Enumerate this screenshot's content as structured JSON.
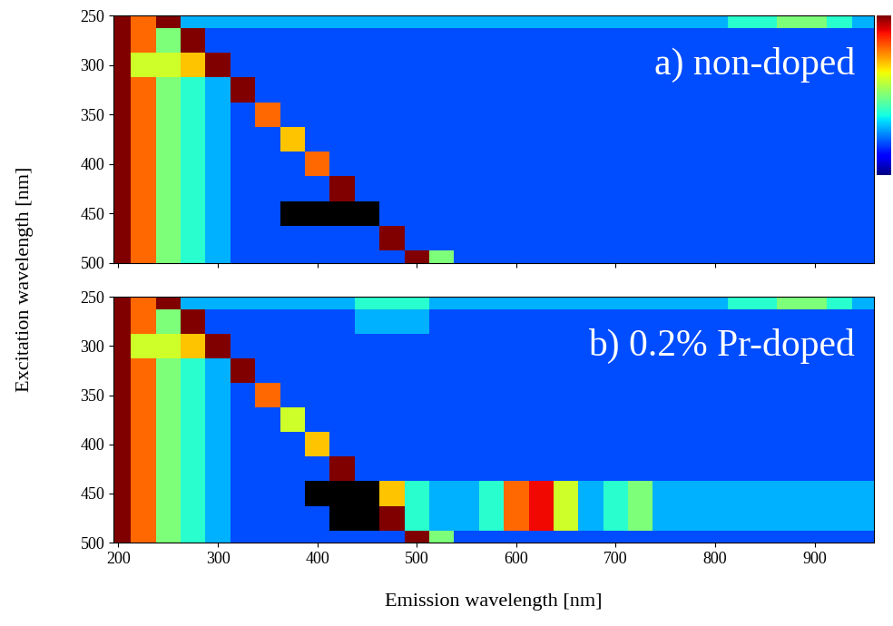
{
  "chart_data": [
    {
      "type": "heatmap",
      "title": "a) non-doped",
      "tick_labels": "y",
      "x": [
        200,
        225,
        250,
        275,
        300,
        325,
        350,
        375,
        400,
        425,
        450,
        475,
        500,
        525,
        550,
        575,
        600,
        625,
        650,
        675,
        700,
        725,
        750,
        775,
        800,
        825,
        850,
        875,
        900,
        925,
        950
      ],
      "y": [
        250,
        275,
        300,
        325,
        350,
        375,
        400,
        425,
        450,
        475,
        500
      ],
      "xlim": [
        195,
        960
      ],
      "xticks": [
        200,
        300,
        400,
        500,
        600,
        700,
        800,
        900
      ],
      "ylim": [
        500,
        250
      ],
      "yticks": [
        250,
        300,
        350,
        400,
        450,
        500
      ],
      "color_range": [
        0,
        10
      ],
      "cells": [
        [
          10,
          8,
          10,
          3,
          3,
          3,
          3,
          3,
          3,
          3,
          3,
          3,
          3,
          3,
          3,
          3,
          3,
          3,
          3,
          3,
          3,
          3,
          3,
          3,
          3,
          4,
          4,
          5,
          5,
          4,
          3
        ],
        [
          10,
          8,
          5,
          10,
          2,
          2,
          2,
          2,
          2,
          2,
          2,
          2,
          2,
          2,
          2,
          2,
          2,
          2,
          2,
          2,
          2,
          2,
          2,
          2,
          2,
          2,
          2,
          2,
          2,
          2,
          2
        ],
        [
          10,
          6,
          6,
          7,
          10,
          2,
          2,
          2,
          2,
          2,
          2,
          2,
          2,
          2,
          2,
          2,
          2,
          2,
          2,
          2,
          2,
          2,
          2,
          2,
          2,
          2,
          2,
          2,
          2,
          2,
          2
        ],
        [
          10,
          8,
          5,
          4,
          3,
          10,
          2,
          2,
          2,
          2,
          2,
          2,
          2,
          2,
          2,
          2,
          2,
          2,
          2,
          2,
          2,
          2,
          2,
          2,
          2,
          2,
          2,
          2,
          2,
          2,
          2
        ],
        [
          10,
          8,
          5,
          4,
          3,
          2,
          8,
          2,
          2,
          2,
          2,
          2,
          2,
          2,
          2,
          2,
          2,
          2,
          2,
          2,
          2,
          2,
          2,
          2,
          2,
          2,
          2,
          2,
          2,
          2,
          2
        ],
        [
          10,
          8,
          5,
          4,
          3,
          2,
          2,
          7,
          2,
          2,
          2,
          2,
          2,
          2,
          2,
          2,
          2,
          2,
          2,
          2,
          2,
          2,
          2,
          2,
          2,
          2,
          2,
          2,
          2,
          2,
          2
        ],
        [
          10,
          8,
          5,
          4,
          3,
          2,
          2,
          2,
          8,
          2,
          2,
          2,
          2,
          2,
          2,
          2,
          2,
          2,
          2,
          2,
          2,
          2,
          2,
          2,
          2,
          2,
          2,
          2,
          2,
          2,
          2
        ],
        [
          10,
          8,
          5,
          4,
          3,
          2,
          2,
          2,
          2,
          10,
          2,
          2,
          2,
          2,
          2,
          2,
          2,
          2,
          2,
          2,
          2,
          2,
          2,
          2,
          2,
          2,
          2,
          2,
          2,
          2,
          2
        ],
        [
          10,
          8,
          5,
          4,
          3,
          2,
          2,
          null,
          null,
          null,
          null,
          2,
          2,
          2,
          2,
          2,
          2,
          2,
          2,
          2,
          2,
          2,
          2,
          2,
          2,
          2,
          2,
          2,
          2,
          2,
          2
        ],
        [
          10,
          8,
          5,
          4,
          3,
          2,
          2,
          2,
          2,
          2,
          2,
          10,
          2,
          2,
          2,
          2,
          2,
          2,
          2,
          2,
          2,
          2,
          2,
          2,
          2,
          2,
          2,
          2,
          2,
          2,
          2
        ],
        [
          10,
          8,
          5,
          4,
          3,
          2,
          2,
          2,
          2,
          2,
          2,
          2,
          10,
          5,
          2,
          2,
          2,
          2,
          2,
          2,
          2,
          2,
          2,
          2,
          2,
          2,
          2,
          2,
          2,
          2,
          2
        ]
      ]
    },
    {
      "type": "heatmap",
      "title": "b) 0.2% Pr-doped",
      "xlabel": "Emission wavelength [nm]",
      "ylabel": "Excitation wavelength [nm]",
      "x": [
        200,
        225,
        250,
        275,
        300,
        325,
        350,
        375,
        400,
        425,
        450,
        475,
        500,
        525,
        550,
        575,
        600,
        625,
        650,
        675,
        700,
        725,
        750,
        775,
        800,
        825,
        850,
        875,
        900,
        925,
        950
      ],
      "y": [
        250,
        275,
        300,
        325,
        350,
        375,
        400,
        425,
        450,
        475,
        500
      ],
      "xlim": [
        195,
        960
      ],
      "xticks": [
        200,
        300,
        400,
        500,
        600,
        700,
        800,
        900
      ],
      "ylim": [
        500,
        250
      ],
      "yticks": [
        250,
        300,
        350,
        400,
        450,
        500
      ],
      "color_range": [
        0,
        10
      ],
      "cells": [
        [
          10,
          8,
          10,
          3,
          3,
          3,
          3,
          3,
          3,
          3,
          4,
          4,
          4,
          3,
          3,
          3,
          3,
          3,
          3,
          3,
          3,
          3,
          3,
          3,
          3,
          4,
          4,
          5,
          5,
          4,
          3
        ],
        [
          10,
          8,
          5,
          10,
          2,
          2,
          2,
          2,
          2,
          2,
          3,
          3,
          3,
          2,
          2,
          2,
          2,
          2,
          2,
          2,
          2,
          2,
          2,
          2,
          2,
          2,
          2,
          2,
          2,
          2,
          2
        ],
        [
          10,
          6,
          6,
          7,
          10,
          2,
          2,
          2,
          2,
          2,
          2,
          2,
          2,
          2,
          2,
          2,
          2,
          2,
          2,
          2,
          2,
          2,
          2,
          2,
          2,
          2,
          2,
          2,
          2,
          2,
          2
        ],
        [
          10,
          8,
          5,
          4,
          3,
          10,
          2,
          2,
          2,
          2,
          2,
          2,
          2,
          2,
          2,
          2,
          2,
          2,
          2,
          2,
          2,
          2,
          2,
          2,
          2,
          2,
          2,
          2,
          2,
          2,
          2
        ],
        [
          10,
          8,
          5,
          4,
          3,
          2,
          8,
          2,
          2,
          2,
          2,
          2,
          2,
          2,
          2,
          2,
          2,
          2,
          2,
          2,
          2,
          2,
          2,
          2,
          2,
          2,
          2,
          2,
          2,
          2,
          2
        ],
        [
          10,
          8,
          5,
          4,
          3,
          2,
          2,
          6,
          2,
          2,
          2,
          2,
          2,
          2,
          2,
          2,
          2,
          2,
          2,
          2,
          2,
          2,
          2,
          2,
          2,
          2,
          2,
          2,
          2,
          2,
          2
        ],
        [
          10,
          8,
          5,
          4,
          3,
          2,
          2,
          2,
          7,
          2,
          2,
          2,
          2,
          2,
          2,
          2,
          2,
          2,
          2,
          2,
          2,
          2,
          2,
          2,
          2,
          2,
          2,
          2,
          2,
          2,
          2
        ],
        [
          10,
          8,
          5,
          4,
          3,
          2,
          2,
          2,
          2,
          10,
          2,
          2,
          2,
          2,
          2,
          2,
          2,
          2,
          2,
          2,
          2,
          2,
          2,
          2,
          2,
          2,
          2,
          2,
          2,
          2,
          2
        ],
        [
          10,
          8,
          5,
          4,
          3,
          2,
          2,
          2,
          null,
          null,
          null,
          7,
          4,
          3,
          3,
          4,
          8,
          9,
          6,
          3,
          4,
          5,
          3,
          3,
          3,
          3,
          3,
          3,
          3,
          3,
          3
        ],
        [
          10,
          8,
          5,
          4,
          3,
          2,
          2,
          2,
          2,
          null,
          null,
          10,
          4,
          3,
          3,
          4,
          8,
          9,
          6,
          3,
          4,
          5,
          3,
          3,
          3,
          3,
          3,
          3,
          3,
          3,
          3
        ],
        [
          10,
          8,
          5,
          4,
          3,
          2,
          2,
          2,
          2,
          2,
          2,
          2,
          10,
          5,
          2,
          2,
          2,
          2,
          2,
          2,
          2,
          2,
          2,
          2,
          2,
          2,
          2,
          2,
          2,
          2,
          2
        ]
      ]
    }
  ]
}
